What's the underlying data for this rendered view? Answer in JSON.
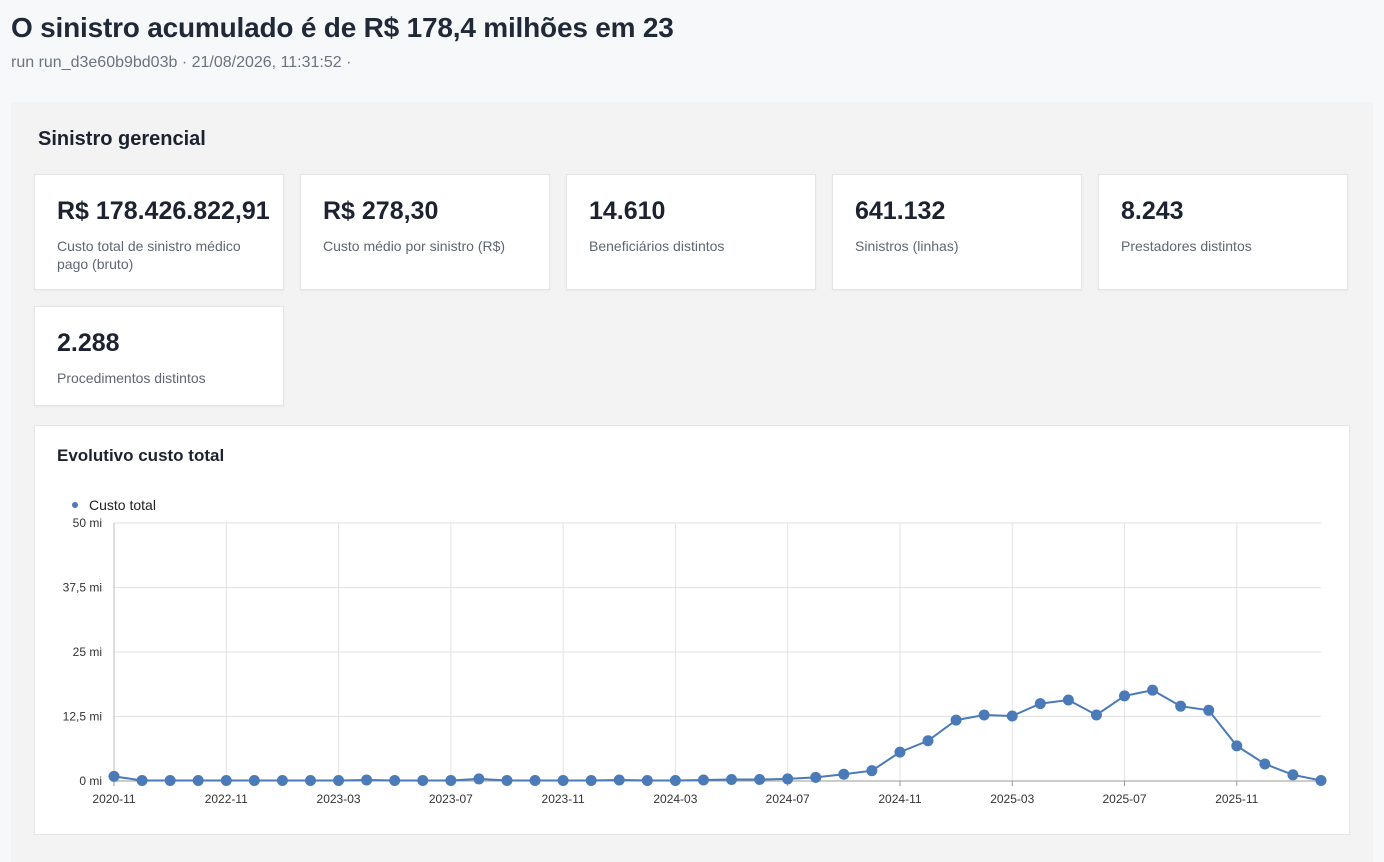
{
  "header": {
    "title": "O sinistro acumulado é de R$ 178,4 milhões em 23",
    "meta": "run run_d3e60b9bd03b · 21/08/2026, 11:31:52 ·"
  },
  "panel": {
    "title": "Sinistro gerencial",
    "kpis": [
      {
        "value": "R$ 178.426.822,91",
        "label": "Custo total de sinistro médico pago (bruto)"
      },
      {
        "value": "R$ 278,30",
        "label": "Custo médio por sinistro (R$)"
      },
      {
        "value": "14.610",
        "label": "Beneficiários distintos"
      },
      {
        "value": "641.132",
        "label": "Sinistros (linhas)"
      },
      {
        "value": "8.243",
        "label": "Prestadores distintos"
      },
      {
        "value": "2.288",
        "label": "Procedimentos distintos"
      }
    ]
  },
  "chart": {
    "title": "Evolutivo custo total"
  },
  "chart_data": {
    "type": "line",
    "series_color": "#4a7ab8",
    "legend": "top-left",
    "grid": true,
    "series": [
      {
        "name": "Custo total",
        "values": [
          0.9,
          0.1,
          0.1,
          0.1,
          0.1,
          0.1,
          0.1,
          0.1,
          0.1,
          0.2,
          0.1,
          0.1,
          0.1,
          0.4,
          0.1,
          0.1,
          0.1,
          0.1,
          0.2,
          0.1,
          0.1,
          0.2,
          0.3,
          0.3,
          0.4,
          0.7,
          1.3,
          2.0,
          5.6,
          7.8,
          11.8,
          12.8,
          12.6,
          15.0,
          15.7,
          12.8,
          16.5,
          17.6,
          14.5,
          13.7,
          6.8,
          3.3,
          1.2,
          0.1
        ]
      }
    ],
    "ylim": [
      0,
      50
    ],
    "y_ticks": [
      "0 mi",
      "12,5 mi",
      "25 mi",
      "37,5 mi",
      "50 mi"
    ],
    "x_ticks": [
      "2020-11",
      "2022-11",
      "2023-03",
      "2023-07",
      "2023-11",
      "2024-03",
      "2024-07",
      "2024-11",
      "2025-03",
      "2025-07",
      "2025-11"
    ],
    "x_tick_positions": [
      0,
      4,
      8,
      12,
      16,
      20,
      24,
      28,
      32,
      36,
      40
    ]
  }
}
